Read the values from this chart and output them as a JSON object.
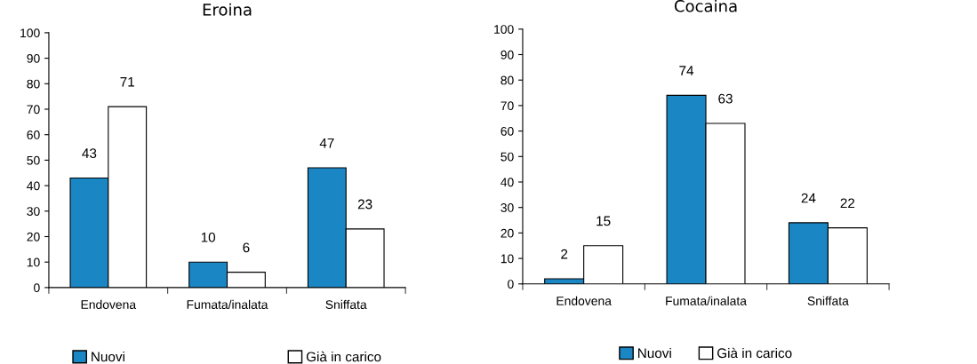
{
  "chart_data": [
    {
      "type": "bar",
      "title": "Eroina",
      "categories": [
        "Endovena",
        "Fumata/inalata",
        "Sniffata"
      ],
      "series": [
        {
          "name": "Nuovi",
          "color": "#1a87c4",
          "values": [
            43,
            10,
            47
          ]
        },
        {
          "name": "Già in carico",
          "color": "#ffffff",
          "values": [
            71,
            6,
            23
          ]
        }
      ],
      "ylim": [
        0,
        100
      ],
      "yticks": [
        0,
        10,
        20,
        30,
        40,
        50,
        60,
        70,
        80,
        90,
        100
      ],
      "data_labels": true,
      "grid": false,
      "legend": "bottom"
    },
    {
      "type": "bar",
      "title": "Cocaina",
      "categories": [
        "Endovena",
        "Fumata/inalata",
        "Sniffata"
      ],
      "series": [
        {
          "name": "Nuovi",
          "color": "#1a87c4",
          "values": [
            2,
            74,
            24
          ]
        },
        {
          "name": "Già in carico",
          "color": "#ffffff",
          "values": [
            15,
            63,
            22
          ]
        }
      ],
      "ylim": [
        0,
        100
      ],
      "yticks": [
        0,
        10,
        20,
        30,
        40,
        50,
        60,
        70,
        80,
        90,
        100
      ],
      "data_labels": true,
      "grid": false,
      "legend": "bottom"
    }
  ]
}
